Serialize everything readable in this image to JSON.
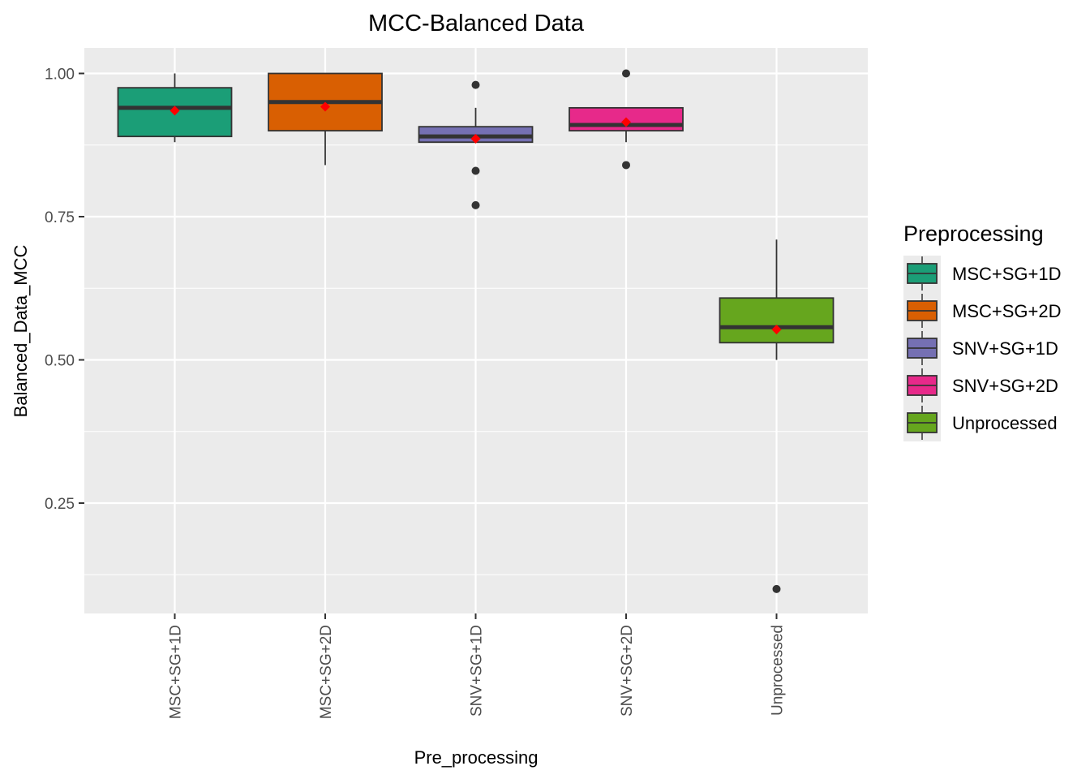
{
  "chart_data": {
    "type": "box",
    "title": "MCC-Balanced Data",
    "xlabel": "Pre_processing",
    "ylabel": "Balanced_Data_MCC",
    "ylim": [
      0.05,
      1.045
    ],
    "yticks": [
      0.25,
      0.5,
      0.75,
      1.0
    ],
    "ytick_labels": [
      "0.25",
      "0.50",
      "0.75",
      "1.00"
    ],
    "grid": true,
    "legend": {
      "title": "Preprocessing",
      "position": "right"
    },
    "categories": [
      "MSC+SG+1D",
      "MSC+SG+2D",
      "SNV+SG+1D",
      "SNV+SG+2D",
      "Unprocessed"
    ],
    "colors": [
      "#1b9e77",
      "#d95f02",
      "#7570b3",
      "#e7298a",
      "#66a61e"
    ],
    "boxes": [
      {
        "name": "MSC+SG+1D",
        "whisker_low": 0.88,
        "q1": 0.89,
        "median": 0.94,
        "q3": 0.975,
        "whisker_high": 1.0,
        "mean": 0.935,
        "outliers": []
      },
      {
        "name": "MSC+SG+2D",
        "whisker_low": 0.84,
        "q1": 0.9,
        "median": 0.95,
        "q3": 1.0,
        "whisker_high": 1.0,
        "mean": 0.942,
        "outliers": []
      },
      {
        "name": "SNV+SG+1D",
        "whisker_low": 0.88,
        "q1": 0.88,
        "median": 0.89,
        "q3": 0.907,
        "whisker_high": 0.94,
        "mean": 0.886,
        "outliers": [
          0.98,
          0.83,
          0.77
        ]
      },
      {
        "name": "SNV+SG+2D",
        "whisker_low": 0.88,
        "q1": 0.9,
        "median": 0.91,
        "q3": 0.94,
        "whisker_high": 0.94,
        "mean": 0.915,
        "outliers": [
          1.0,
          0.84
        ]
      },
      {
        "name": "Unprocessed",
        "whisker_low": 0.5,
        "q1": 0.53,
        "median": 0.557,
        "q3": 0.608,
        "whisker_high": 0.71,
        "mean": 0.553,
        "outliers": [
          0.1
        ]
      }
    ],
    "mean_marker_color": "#ff0000",
    "panel_background": "#ebebeb",
    "grid_color": "#ffffff"
  }
}
